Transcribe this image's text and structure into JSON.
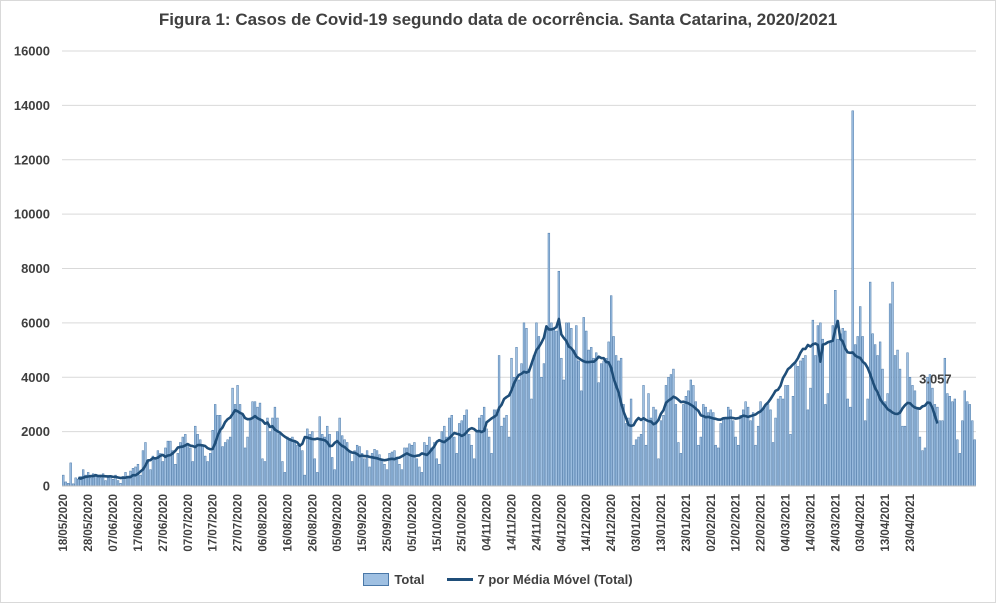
{
  "chart_data": {
    "type": "bar",
    "title": "Figura 1: Casos de Covid-19 segundo data de ocorrência. Santa Catarina, 2020/2021",
    "xlabel": "",
    "ylabel": "",
    "ylim": [
      0,
      16000
    ],
    "yticks": [
      "0",
      "2000",
      "4000",
      "6000",
      "8000",
      "10000",
      "12000",
      "14000",
      "16000"
    ],
    "x_start": "18/05/2020",
    "x_end": "23/04/2021",
    "xtick_labels": [
      "18/05/2020",
      "28/05/2020",
      "07/06/2020",
      "17/06/2020",
      "27/06/2020",
      "07/07/2020",
      "17/07/2020",
      "27/07/2020",
      "06/08/2020",
      "16/08/2020",
      "26/08/2020",
      "05/09/2020",
      "15/09/2020",
      "25/09/2020",
      "05/10/2020",
      "15/10/2020",
      "25/10/2020",
      "04/11/2020",
      "14/11/2020",
      "24/11/2020",
      "04/12/2020",
      "14/12/2020",
      "24/12/2020",
      "03/01/2021",
      "13/01/2021",
      "23/01/2021",
      "02/02/2021",
      "12/02/2021",
      "22/02/2021",
      "04/03/2021",
      "14/03/2021",
      "24/03/2021",
      "03/04/2021",
      "13/04/2021",
      "23/04/2021"
    ],
    "series": [
      {
        "name": "Total",
        "type": "bar",
        "color": "#9fc0e2",
        "edge_color": "#4a78a8",
        "values": [
          400,
          150,
          100,
          850,
          80,
          300,
          250,
          350,
          600,
          400,
          500,
          300,
          450,
          350,
          400,
          300,
          450,
          200,
          300,
          350,
          250,
          400,
          200,
          100,
          350,
          500,
          300,
          550,
          650,
          700,
          800,
          400,
          1300,
          1600,
          900,
          600,
          1100,
          1000,
          1300,
          1200,
          900,
          1400,
          1650,
          1650,
          1300,
          800,
          1200,
          1600,
          1800,
          1900,
          1550,
          1400,
          900,
          2200,
          1900,
          1700,
          1500,
          1100,
          900,
          1200,
          2050,
          3000,
          2600,
          2600,
          1450,
          1600,
          1700,
          1800,
          3600,
          3000,
          3700,
          3000,
          2600,
          1400,
          1800,
          2500,
          3100,
          3100,
          2900,
          3050,
          1000,
          900,
          2500,
          2000,
          2500,
          2900,
          2500,
          1900,
          900,
          500,
          1800,
          1750,
          1800,
          1600,
          1500,
          1450,
          1300,
          400,
          2100,
          1900,
          2000,
          1000,
          500,
          2550,
          1900,
          1800,
          2200,
          1900,
          1050,
          600,
          2000,
          2500,
          1850,
          1700,
          1600,
          1300,
          900,
          1300,
          1500,
          1450,
          1200,
          1000,
          1300,
          700,
          1200,
          1350,
          1300,
          1150,
          1000,
          800,
          600,
          1200,
          1250,
          1300,
          1000,
          800,
          600,
          1400,
          1400,
          1550,
          1500,
          1600,
          1000,
          700,
          500,
          1600,
          1500,
          1800,
          1400,
          1600,
          1000,
          800,
          2000,
          2200,
          1800,
          2500,
          2600,
          1800,
          1200,
          2300,
          2400,
          2600,
          2800,
          1900,
          1500,
          1000,
          2000,
          2500,
          2600,
          2900,
          2100,
          1800,
          1200,
          2800,
          2800,
          4800,
          2200,
          2500,
          2600,
          1800,
          4700,
          4000,
          5100,
          3900,
          4500,
          6000,
          5800,
          4300,
          3200,
          4800,
          6000,
          5500,
          4000,
          4500,
          5800,
          9300,
          6000,
          5800,
          5700,
          7900,
          4700,
          3900,
          6000,
          6000,
          5800,
          5000,
          5900,
          4600,
          3500,
          6200,
          5700,
          5000,
          5100,
          4700,
          4900,
          3800,
          4500,
          4600,
          4700,
          5300,
          7000,
          5500,
          4800,
          4600,
          4700,
          3000,
          2300,
          2500,
          3200,
          1500,
          1700,
          1800,
          1900,
          3700,
          1500,
          3400,
          2500,
          2900,
          2800,
          1000,
          2400,
          2600,
          3700,
          4000,
          4100,
          4300,
          3000,
          1600,
          1200,
          3000,
          3300,
          3500,
          3900,
          3700,
          3100,
          1500,
          1800,
          3000,
          2900,
          2700,
          2800,
          2700,
          1500,
          1400,
          2300,
          2500,
          2500,
          2900,
          2800,
          2400,
          1800,
          1500,
          2600,
          2800,
          3100,
          2900,
          2400,
          2700,
          1500,
          2200,
          3100,
          2800,
          3000,
          3000,
          2800,
          1600,
          2500,
          3200,
          3300,
          3200,
          3700,
          3700,
          1900,
          3300,
          4500,
          4400,
          4600,
          4700,
          4800,
          2800,
          3600,
          6100,
          4800,
          5900,
          6000,
          5400,
          3000,
          3400,
          5300,
          5900,
          7200,
          5400,
          5600,
          5800,
          5700,
          3200,
          2900,
          13800,
          5200,
          5500,
          6600,
          5500,
          2400,
          3200,
          7500,
          5600,
          5200,
          4800,
          5300,
          4300,
          3100,
          3400,
          6700,
          7500,
          4800,
          5000,
          4300,
          2200,
          2200,
          4900,
          4000,
          3700,
          3500,
          2900,
          1800,
          1300,
          1400,
          4000,
          4100,
          3600,
          3000,
          2900,
          2400,
          2400,
          4700,
          3400,
          3300,
          3100,
          3200,
          1700,
          1200,
          2400,
          3500,
          3100,
          3000,
          2400,
          1700
        ]
      },
      {
        "name": "7 por Média Móvel (Total)",
        "type": "line",
        "color": "#1f4e79",
        "window": 7,
        "values": [
          null,
          null,
          null,
          null,
          null,
          null,
          307,
          271,
          307,
          336,
          350,
          364,
          364,
          400,
          364,
          371,
          364,
          357,
          350,
          357,
          336,
          336,
          314,
          293,
          307,
          307,
          329,
          329,
          400,
          393,
          450,
          536,
          607,
          750,
          943,
          950,
          1029,
          1014,
          1043,
          1114,
          1143,
          1071,
          1121,
          1136,
          1207,
          1293,
          1414,
          1436,
          1450,
          1493,
          1543,
          1486,
          1469,
          1433,
          1507,
          1507,
          1493,
          1469,
          1390,
          1353,
          1361,
          1571,
          1850,
          2057,
          2157,
          2350,
          2457,
          2514,
          2643,
          2786,
          2750,
          2686,
          2650,
          2500,
          2457,
          2461,
          2500,
          2571,
          2493,
          2450,
          2407,
          2293,
          2336,
          2171,
          2200,
          2071,
          2014,
          1967,
          1881,
          1811,
          1756,
          1707,
          1668,
          1648,
          1600,
          1484,
          1550,
          1800,
          1782,
          1754,
          1729,
          1721,
          1744,
          1721,
          1706,
          1683,
          1612,
          1467,
          1479,
          1587,
          1650,
          1554,
          1474,
          1431,
          1347,
          1271,
          1229,
          1221,
          1177,
          1100,
          1121,
          1100,
          1097,
          1071,
          1054,
          1037,
          1021,
          986,
          966,
          947,
          964,
          986,
          1000,
          986,
          1029,
          1043,
          1093,
          1150,
          1200,
          1150,
          1114,
          1093,
          1114,
          1129,
          1200,
          1171,
          1143,
          1229,
          1350,
          1457,
          1629,
          1686,
          1643,
          1614,
          1686,
          1757,
          1857,
          1950,
          1921,
          1900,
          1843,
          1886,
          1986,
          2086,
          2129,
          2093,
          2014,
          2020,
          1986,
          2029,
          2343,
          2414,
          2486,
          2543,
          2614,
          2871,
          2986,
          3200,
          3271,
          3329,
          3514,
          3771,
          3957,
          4086,
          4129,
          4200,
          4171,
          4214,
          4486,
          4757,
          5000,
          5114,
          5271,
          5457,
          5871,
          5757,
          5757,
          5786,
          5843,
          6143,
          5571,
          5443,
          5336,
          5129,
          5071,
          4943,
          4771,
          4700,
          4636,
          4586,
          4557,
          4557,
          4571,
          4571,
          4643,
          4757,
          4707,
          4700,
          4557,
          4550,
          4343,
          3957,
          3686,
          3443,
          3057,
          2729,
          2500,
          2243,
          2214,
          2236,
          2400,
          2500,
          2429,
          2493,
          2429,
          2386,
          2371,
          2271,
          2314,
          2429,
          2657,
          2786,
          3057,
          3143,
          3200,
          3286,
          3243,
          3171,
          3086,
          3100,
          3071,
          3043,
          2986,
          2929,
          2843,
          2767,
          2600,
          2571,
          2529,
          2543,
          2514,
          2486,
          2471,
          2443,
          2440,
          2489,
          2500,
          2500,
          2514,
          2500,
          2480,
          2493,
          2529,
          2586,
          2571,
          2543,
          2571,
          2600,
          2629,
          2700,
          2743,
          2843,
          2986,
          3071,
          3200,
          3343,
          3500,
          3543,
          3686,
          3971,
          4121,
          4300,
          4371,
          4471,
          4557,
          4700,
          4900,
          5043,
          5043,
          5186,
          5129,
          5214,
          5243,
          5186,
          4571,
          5200,
          5229,
          5286,
          5314,
          5343,
          5757,
          6071,
          5414,
          5314,
          5057,
          4914,
          4900,
          4914,
          4800,
          4743,
          4714,
          4571,
          4500,
          4343,
          4114,
          3857,
          3600,
          3443,
          3200,
          3057,
          2957,
          2829,
          2771,
          2700,
          2657,
          2650,
          2700,
          2857,
          2971,
          3057,
          3043,
          2950,
          2886,
          2857,
          2843,
          2929,
          2957,
          3071,
          3057,
          2871,
          2586,
          2300
        ]
      }
    ],
    "data_labels": [
      {
        "text": "3.057"
      }
    ],
    "legend": "bottom",
    "grid": true
  }
}
